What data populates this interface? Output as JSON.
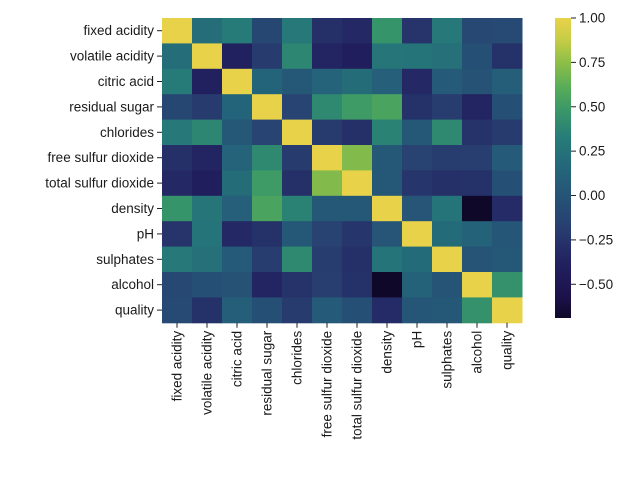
{
  "chart_data": {
    "type": "heatmap",
    "title": "",
    "xlabel": "",
    "ylabel": "",
    "categories": [
      "fixed acidity",
      "volatile acidity",
      "citric acid",
      "residual sugar",
      "chlorides",
      "free sulfur dioxide",
      "total sulfur dioxide",
      "density",
      "pH",
      "sulphates",
      "alcohol",
      "quality"
    ],
    "x": [
      "fixed acidity",
      "volatile acidity",
      "citric acid",
      "residual sugar",
      "chlorides",
      "free sulfur dioxide",
      "total sulfur dioxide",
      "density",
      "pH",
      "sulphates",
      "alcohol",
      "quality"
    ],
    "y": [
      "fixed acidity",
      "volatile acidity",
      "citric acid",
      "residual sugar",
      "chlorides",
      "free sulfur dioxide",
      "total sulfur dioxide",
      "density",
      "pH",
      "sulphates",
      "alcohol",
      "quality"
    ],
    "values": [
      [
        1.0,
        0.22,
        0.32,
        -0.11,
        0.3,
        -0.28,
        -0.33,
        0.46,
        -0.25,
        0.3,
        -0.1,
        -0.08
      ],
      [
        0.22,
        1.0,
        -0.38,
        -0.2,
        0.38,
        -0.35,
        -0.41,
        0.27,
        0.26,
        0.23,
        -0.04,
        -0.27
      ],
      [
        0.32,
        -0.38,
        1.0,
        0.14,
        0.04,
        0.13,
        0.2,
        0.1,
        -0.33,
        0.06,
        -0.01,
        0.09
      ],
      [
        -0.11,
        -0.2,
        0.14,
        1.0,
        -0.13,
        0.4,
        0.5,
        0.55,
        -0.27,
        -0.19,
        -0.36,
        -0.04
      ],
      [
        0.3,
        0.38,
        0.04,
        -0.13,
        1.0,
        -0.2,
        -0.28,
        0.36,
        0.04,
        0.4,
        -0.26,
        -0.2
      ],
      [
        -0.28,
        -0.35,
        0.13,
        0.4,
        -0.2,
        1.0,
        0.72,
        0.03,
        -0.15,
        -0.19,
        -0.18,
        0.06
      ],
      [
        -0.33,
        -0.41,
        0.2,
        0.5,
        -0.28,
        0.72,
        1.0,
        0.03,
        -0.24,
        -0.28,
        -0.27,
        -0.04
      ],
      [
        0.46,
        0.27,
        0.1,
        0.55,
        0.36,
        0.03,
        0.03,
        1.0,
        0.01,
        0.26,
        -0.69,
        -0.31
      ],
      [
        -0.25,
        0.26,
        -0.33,
        -0.27,
        0.04,
        -0.15,
        -0.24,
        0.01,
        1.0,
        0.19,
        0.12,
        0.02
      ],
      [
        0.3,
        0.23,
        0.06,
        -0.19,
        0.4,
        -0.19,
        -0.28,
        0.26,
        0.19,
        1.0,
        -0.0,
        0.04
      ],
      [
        -0.1,
        -0.04,
        -0.01,
        -0.36,
        -0.26,
        -0.18,
        -0.27,
        -0.69,
        0.12,
        -0.0,
        1.0,
        0.44
      ],
      [
        -0.08,
        -0.27,
        0.09,
        -0.04,
        -0.2,
        0.06,
        -0.04,
        -0.31,
        0.02,
        0.04,
        0.44,
        1.0
      ]
    ],
    "color_range": [
      -0.69,
      1.0
    ],
    "colormap": "viridis-like (dark navy to green to yellow)",
    "colorbar": {
      "ticks": [
        1.0,
        0.75,
        0.5,
        0.25,
        0.0,
        -0.25,
        -0.5
      ],
      "tick_labels": [
        "1.00",
        "0.75",
        "0.50",
        "0.25",
        "0.00",
        "−0.25",
        "−0.50"
      ]
    },
    "grid": false,
    "legend": "colorbar-right"
  }
}
